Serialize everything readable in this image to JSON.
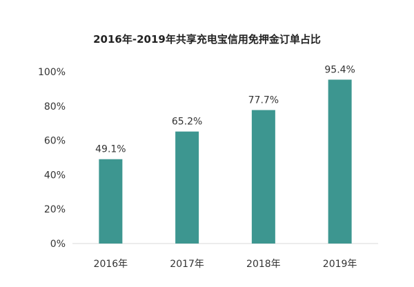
{
  "chart_data": {
    "type": "bar",
    "title": "2016年-2019年共享充电宝信用免押金订单占比",
    "categories": [
      "2016年",
      "2017年",
      "2018年",
      "2019年"
    ],
    "values": [
      49.1,
      65.2,
      77.7,
      95.4
    ],
    "data_labels": [
      "49.1%",
      "65.2%",
      "77.7%",
      "95.4%"
    ],
    "yticks": [
      "0%",
      "20%",
      "40%",
      "60%",
      "80%",
      "100%"
    ],
    "ylim": [
      0,
      100
    ],
    "xlabel": "",
    "ylabel": "",
    "grid": false,
    "bar_color": "#3d9690"
  }
}
